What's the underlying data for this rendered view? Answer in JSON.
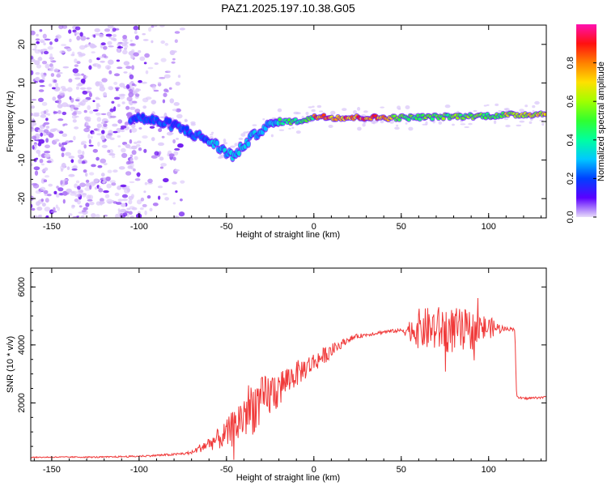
{
  "figure": {
    "title": "PAZ1.2025.197.10.38.G05"
  },
  "chart_data": [
    {
      "type": "heatmap",
      "title": "PAZ1.2025.197.10.38.G05",
      "xlabel": "Height of straight line (km)",
      "ylabel": "Frequency (Hz)",
      "xlim": [
        -162,
        133
      ],
      "ylim": [
        -25,
        25
      ],
      "xticks": [
        -150,
        -100,
        -50,
        0,
        50,
        100
      ],
      "yticks": [
        -20,
        -10,
        0,
        10,
        20
      ],
      "colorbar": {
        "label": "Normalized spectral amplitude",
        "range": [
          0,
          1
        ],
        "ticks": [
          0.0,
          0.2,
          0.4,
          0.6,
          0.8
        ],
        "colormap": "gist_ncar"
      },
      "ridge": {
        "x": [
          -100,
          -80,
          -70,
          -60,
          -50,
          -45,
          -40,
          -35,
          -30,
          -25,
          -20,
          -10,
          0,
          5,
          10,
          20,
          50,
          100,
          133
        ],
        "frequency_hz": [
          1,
          -1,
          -3,
          -5,
          -8,
          -9,
          -6,
          -4,
          -2,
          -1,
          0,
          0,
          1,
          1.5,
          1,
          1,
          1,
          1.5,
          2
        ]
      },
      "grid": false
    },
    {
      "type": "line",
      "xlabel": "Height of straight line (km)",
      "ylabel": "SNR (10 * v/v)",
      "xlim": [
        -162,
        133
      ],
      "ylim": [
        0,
        6650
      ],
      "xticks": [
        -150,
        -100,
        -50,
        0,
        50,
        100
      ],
      "yticks": [
        2000,
        4000,
        6000
      ],
      "series": [
        {
          "color": "#f03a3a",
          "x": [
            -162,
            -150,
            -120,
            -100,
            -80,
            -70,
            -65,
            -60,
            -55,
            -50,
            -45,
            -40,
            -35,
            -30,
            -25,
            -20,
            -15,
            -10,
            -5,
            0,
            5,
            10,
            15,
            20,
            25,
            30,
            40,
            50,
            60,
            70,
            80,
            90,
            100,
            110,
            115,
            116,
            120,
            133
          ],
          "y": [
            120,
            130,
            130,
            160,
            220,
            280,
            450,
            600,
            750,
            900,
            1200,
            1600,
            1900,
            2000,
            2300,
            2500,
            2800,
            3000,
            3200,
            3400,
            3600,
            3800,
            4000,
            4200,
            4300,
            4350,
            4450,
            4500,
            4550,
            4550,
            4500,
            4500,
            4600,
            4550,
            4550,
            2200,
            2150,
            2200
          ],
          "noise": [
            20,
            20,
            25,
            30,
            40,
            60,
            150,
            250,
            350,
            500,
            700,
            900,
            1000,
            900,
            800,
            700,
            500,
            450,
            400,
            350,
            300,
            250,
            150,
            100,
            80,
            60,
            60,
            60,
            700,
            800,
            800,
            700,
            400,
            60,
            60,
            40,
            40,
            40
          ]
        }
      ],
      "grid": false
    }
  ]
}
